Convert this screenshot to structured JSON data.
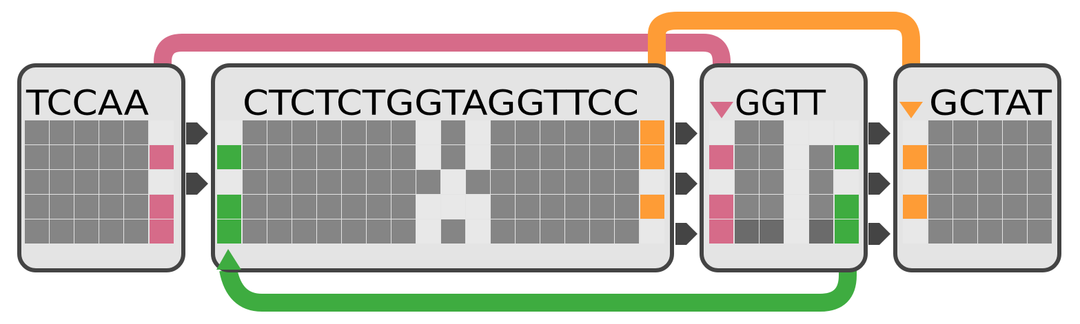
{
  "colors": {
    "panel_fill": "#e4e4e4",
    "panel_border": "#444444",
    "cell_gray": "#858585",
    "cell_dark": "#6b6b6b",
    "cell_light": "#e8e8e8",
    "pink": "#d66b89",
    "orange": "#fe9c36",
    "green": "#3eac40",
    "arrow": "#444444"
  },
  "blocks": [
    {
      "id": "block-1",
      "sequence": "TCCAA"
    },
    {
      "id": "block-2",
      "sequence": "CTCTCTGGTAGGTTCC"
    },
    {
      "id": "block-3",
      "sequence": "GGTT"
    },
    {
      "id": "block-4",
      "sequence": "GCTAT"
    }
  ],
  "links": [
    {
      "from": "block-1",
      "to": "block-3",
      "color": "pink"
    },
    {
      "from": "block-2",
      "to": "block-4",
      "color": "orange"
    },
    {
      "from": "block-3",
      "to": "block-2",
      "color": "green"
    }
  ]
}
